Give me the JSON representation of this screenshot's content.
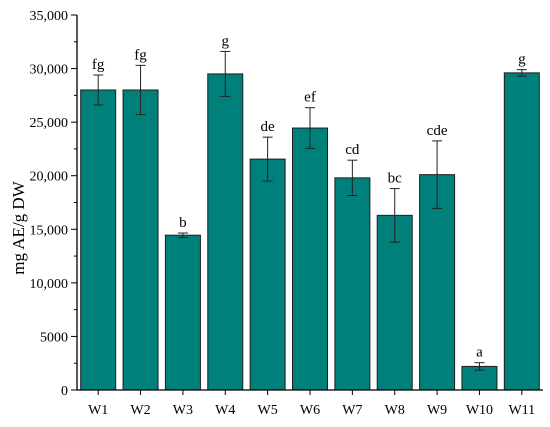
{
  "chart_data": {
    "type": "bar",
    "title": "",
    "xlabel": "",
    "ylabel": "mg AE/g DW",
    "ylim": [
      0,
      35000
    ],
    "yticks": [
      0,
      5000,
      10000,
      15000,
      20000,
      25000,
      30000,
      35000
    ],
    "ytick_labels": [
      "0",
      "5000",
      "10,000",
      "15,000",
      "20,000",
      "25,000",
      "30,000",
      "35,000"
    ],
    "grid": false,
    "legend": "none",
    "bar_color": "#00807a",
    "categories": [
      "W1",
      "W2",
      "W3",
      "W4",
      "W5",
      "W6",
      "W7",
      "W8",
      "W9",
      "W10",
      "W11"
    ],
    "values": [
      28000,
      28000,
      14450,
      29500,
      21550,
      24450,
      19800,
      16300,
      20100,
      2200,
      29600
    ],
    "errors": [
      1400,
      2300,
      200,
      2100,
      2050,
      1900,
      1650,
      2500,
      3150,
      350,
      300
    ],
    "significance_labels": [
      "fg",
      "fg",
      "b",
      "g",
      "de",
      "ef",
      "cd",
      "bc",
      "cde",
      "a",
      "g"
    ]
  }
}
